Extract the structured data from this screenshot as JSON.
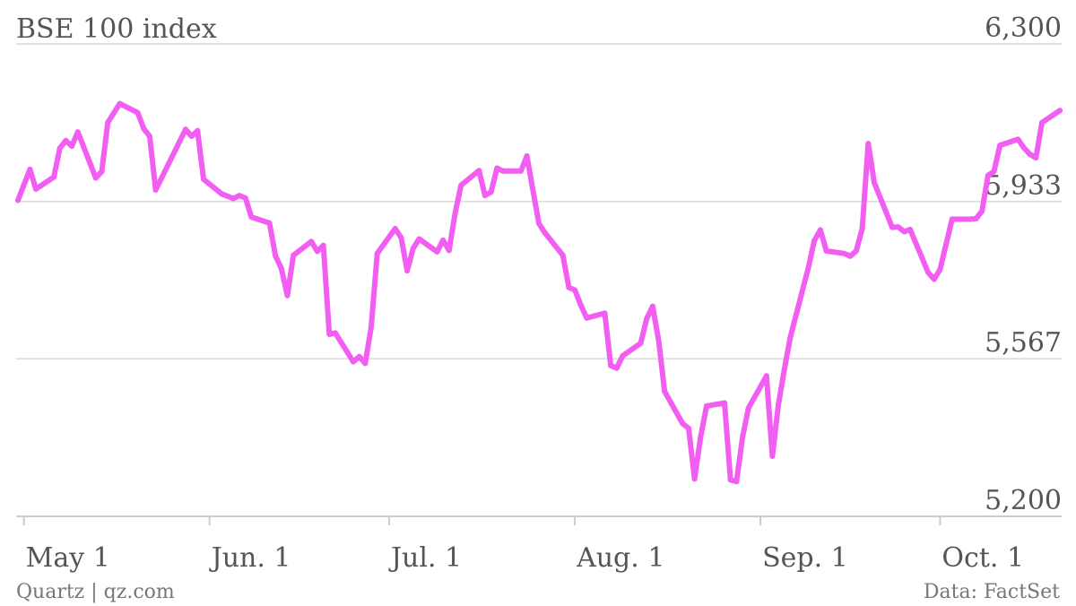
{
  "chart_data": {
    "type": "line",
    "title": "BSE 100 index",
    "xlabel": "",
    "ylabel": "",
    "ylim": [
      5200,
      6300
    ],
    "y_ticks": [
      {
        "value": 6300,
        "label": "6,300"
      },
      {
        "value": 5933,
        "label": "5,933"
      },
      {
        "value": 5567,
        "label": "5,567"
      },
      {
        "value": 5200,
        "label": "5,200"
      }
    ],
    "x_ticks": [
      {
        "day": 0,
        "label": "May 1"
      },
      {
        "day": 31,
        "label": "Jun. 1"
      },
      {
        "day": 61,
        "label": "Jul. 1"
      },
      {
        "day": 92,
        "label": "Aug. 1"
      },
      {
        "day": 123,
        "label": "Sep. 1"
      },
      {
        "day": 153,
        "label": "Oct. 1"
      }
    ],
    "xlim": [
      -1,
      173
    ],
    "grid": true,
    "line_color": "#f15ef1",
    "series": [
      {
        "points": [
          [
            -1,
            5936
          ],
          [
            1,
            6008
          ],
          [
            2,
            5962
          ],
          [
            5,
            5990
          ],
          [
            6,
            6057
          ],
          [
            7,
            6075
          ],
          [
            8,
            6062
          ],
          [
            9,
            6095
          ],
          [
            12,
            5988
          ],
          [
            13,
            6003
          ],
          [
            14,
            6117
          ],
          [
            16,
            6161
          ],
          [
            19,
            6140
          ],
          [
            20,
            6103
          ],
          [
            21,
            6085
          ],
          [
            22,
            5960
          ],
          [
            27,
            6101
          ],
          [
            28,
            6085
          ],
          [
            29,
            6098
          ],
          [
            30,
            5985
          ],
          [
            33,
            5951
          ],
          [
            35,
            5940
          ],
          [
            36,
            5947
          ],
          [
            37,
            5941
          ],
          [
            38,
            5897
          ],
          [
            41,
            5883
          ],
          [
            42,
            5807
          ],
          [
            43,
            5777
          ],
          [
            44,
            5714
          ],
          [
            45,
            5808
          ],
          [
            48,
            5840
          ],
          [
            49,
            5817
          ],
          [
            50,
            5831
          ],
          [
            51,
            5624
          ],
          [
            52,
            5627
          ],
          [
            55,
            5560
          ],
          [
            56,
            5572
          ],
          [
            57,
            5556
          ],
          [
            58,
            5641
          ],
          [
            59,
            5812
          ],
          [
            62,
            5870
          ],
          [
            63,
            5849
          ],
          [
            64,
            5772
          ],
          [
            65,
            5824
          ],
          [
            66,
            5846
          ],
          [
            69,
            5816
          ],
          [
            70,
            5843
          ],
          [
            71,
            5819
          ],
          [
            72,
            5905
          ],
          [
            73,
            5971
          ],
          [
            76,
            6005
          ],
          [
            77,
            5947
          ],
          [
            78,
            5955
          ],
          [
            79,
            6011
          ],
          [
            80,
            6004
          ],
          [
            83,
            6004
          ],
          [
            84,
            6039
          ],
          [
            85,
            5960
          ],
          [
            86,
            5882
          ],
          [
            87,
            5860
          ],
          [
            90,
            5808
          ],
          [
            91,
            5733
          ],
          [
            92,
            5727
          ],
          [
            93,
            5692
          ],
          [
            94,
            5662
          ],
          [
            97,
            5673
          ],
          [
            98,
            5551
          ],
          [
            99,
            5545
          ],
          [
            100,
            5574
          ],
          [
            103,
            5603
          ],
          [
            104,
            5660
          ],
          [
            105,
            5689
          ],
          [
            106,
            5609
          ],
          [
            107,
            5491
          ],
          [
            110,
            5416
          ],
          [
            111,
            5405
          ],
          [
            112,
            5287
          ],
          [
            113,
            5384
          ],
          [
            114,
            5457
          ],
          [
            117,
            5464
          ],
          [
            118,
            5285
          ],
          [
            119,
            5281
          ],
          [
            120,
            5384
          ],
          [
            121,
            5452
          ],
          [
            124,
            5527
          ],
          [
            125,
            5340
          ],
          [
            126,
            5460
          ],
          [
            127,
            5543
          ],
          [
            128,
            5618
          ],
          [
            131,
            5779
          ],
          [
            132,
            5842
          ],
          [
            133,
            5867
          ],
          [
            134,
            5818
          ],
          [
            137,
            5812
          ],
          [
            138,
            5806
          ],
          [
            139,
            5818
          ],
          [
            140,
            5870
          ],
          [
            141,
            6068
          ],
          [
            142,
            5977
          ],
          [
            145,
            5873
          ],
          [
            146,
            5874
          ],
          [
            147,
            5863
          ],
          [
            148,
            5868
          ],
          [
            151,
            5768
          ],
          [
            152,
            5752
          ],
          [
            153,
            5775
          ],
          [
            155,
            5892
          ],
          [
            158,
            5892
          ],
          [
            159,
            5893
          ],
          [
            160,
            5911
          ],
          [
            161,
            5994
          ],
          [
            162,
            6003
          ],
          [
            163,
            6064
          ],
          [
            166,
            6078
          ],
          [
            167,
            6058
          ],
          [
            168,
            6043
          ],
          [
            169,
            6035
          ],
          [
            170,
            6117
          ],
          [
            173,
            6145
          ]
        ]
      }
    ]
  },
  "footer": {
    "source_left": "Quartz | qz.com",
    "source_right": "Data: FactSet"
  }
}
